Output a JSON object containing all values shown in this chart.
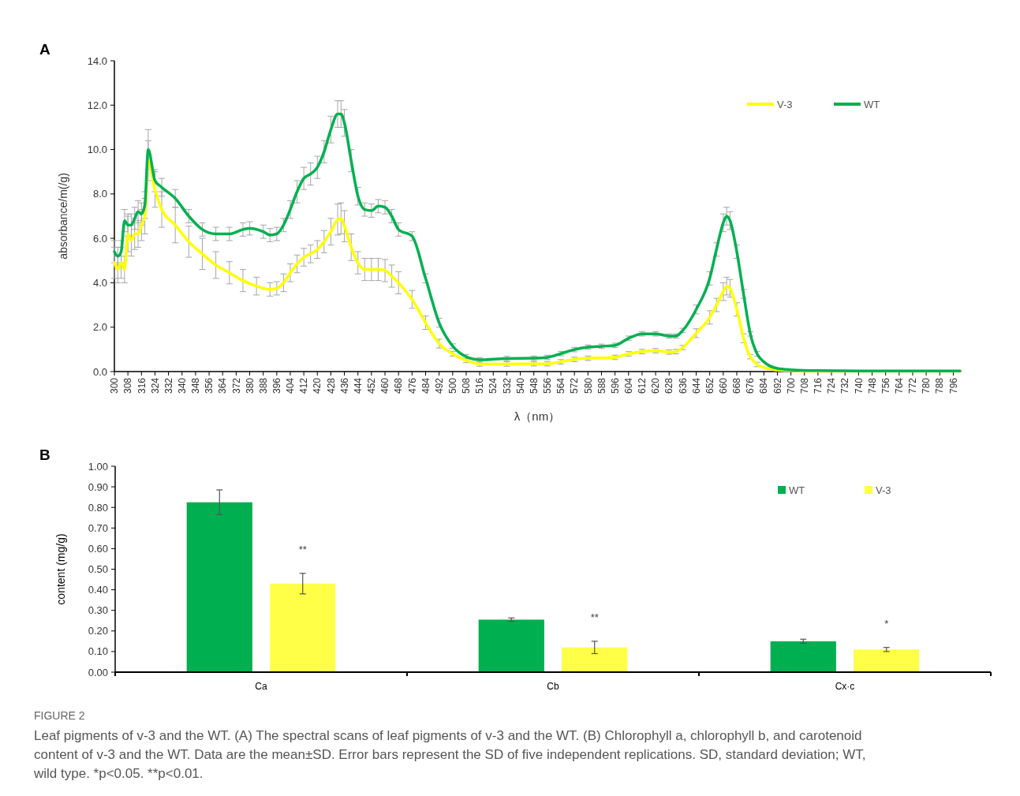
{
  "chart_data": [
    {
      "type": "line",
      "title": "A",
      "xlabel": "λ（nm）",
      "ylabel": "absorbance/m(/g)",
      "legend": "top right",
      "xlim": [
        300,
        800
      ],
      "xticks": [
        300,
        308,
        316,
        324,
        332,
        340,
        348,
        356,
        364,
        372,
        380,
        388,
        396,
        404,
        412,
        420,
        428,
        436,
        444,
        452,
        460,
        468,
        476,
        484,
        492,
        500,
        508,
        516,
        524,
        532,
        540,
        548,
        556,
        564,
        572,
        580,
        588,
        596,
        604,
        612,
        620,
        628,
        636,
        644,
        652,
        660,
        668,
        676,
        684,
        692,
        700,
        708,
        716,
        724,
        732,
        740,
        748,
        756,
        764,
        772,
        780,
        788,
        796
      ],
      "ylim": [
        0,
        14
      ],
      "yticks": [
        {
          "value": 0,
          "label": "0.0"
        },
        {
          "value": 2,
          "label": "2.0"
        },
        {
          "value": 4,
          "label": "4.0"
        },
        {
          "value": 6,
          "label": "6.0"
        },
        {
          "value": 8,
          "label": "8.0"
        },
        {
          "value": 10,
          "label": "10.0"
        },
        {
          "value": 12,
          "label": "12.0"
        },
        {
          "value": 14,
          "label": "14.0"
        }
      ],
      "series": [
        {
          "name": "V-3",
          "color": "#ffff00",
          "x": [
            300,
            302,
            304,
            306,
            308,
            310,
            312,
            314,
            316,
            318,
            320,
            324,
            328,
            336,
            344,
            352,
            360,
            368,
            376,
            384,
            392,
            396,
            400,
            404,
            408,
            412,
            416,
            420,
            424,
            428,
            432,
            434,
            436,
            440,
            444,
            448,
            452,
            456,
            460,
            464,
            468,
            476,
            484,
            492,
            500,
            508,
            516,
            532,
            548,
            556,
            564,
            572,
            580,
            596,
            604,
            612,
            620,
            628,
            632,
            636,
            644,
            652,
            656,
            660,
            662,
            664,
            668,
            672,
            676,
            680,
            684,
            692,
            700,
            716,
            800
          ],
          "values": [
            4.9,
            4.6,
            4.9,
            4.6,
            6.2,
            5.9,
            6.2,
            6.2,
            6.6,
            7.0,
            9.5,
            8.2,
            7.3,
            6.6,
            5.85,
            5.3,
            4.8,
            4.45,
            4.1,
            3.85,
            3.7,
            3.75,
            4.0,
            4.45,
            4.85,
            5.15,
            5.3,
            5.5,
            5.85,
            6.3,
            6.85,
            6.9,
            6.55,
            5.6,
            4.9,
            4.6,
            4.6,
            4.6,
            4.55,
            4.3,
            4.0,
            3.25,
            2.2,
            1.26,
            0.8,
            0.5,
            0.34,
            0.34,
            0.35,
            0.35,
            0.44,
            0.55,
            0.6,
            0.64,
            0.8,
            0.9,
            0.94,
            0.88,
            0.9,
            1.08,
            1.73,
            2.44,
            3.0,
            3.6,
            3.85,
            3.75,
            2.8,
            1.5,
            0.67,
            0.32,
            0.18,
            0.07,
            0.04,
            0.02,
            0.02
          ],
          "errors": [
            0.7,
            0.6,
            0.7,
            0.6,
            0.8,
            0.7,
            0.7,
            0.6,
            0.7,
            0.8,
            0.9,
            0.8,
            0.8,
            0.8,
            0.7,
            0.7,
            0.6,
            0.5,
            0.5,
            0.4,
            0.3,
            0.3,
            0.4,
            0.4,
            0.4,
            0.4,
            0.4,
            0.4,
            0.5,
            0.6,
            0.7,
            0.7,
            0.7,
            0.6,
            0.5,
            0.5,
            0.5,
            0.5,
            0.5,
            0.5,
            0.5,
            0.4,
            0.3,
            0.2,
            0.1,
            0.1,
            0.1,
            0.1,
            0.1,
            0.1,
            0.1,
            0.1,
            0.1,
            0.1,
            0.1,
            0.1,
            0.1,
            0.1,
            0.1,
            0.1,
            0.2,
            0.3,
            0.3,
            0.4,
            0.4,
            0.4,
            0.3,
            0.2,
            0.1,
            0.1,
            null,
            null,
            null,
            null,
            null
          ]
        },
        {
          "name": "WT",
          "color": "#00b050",
          "x": [
            300,
            302,
            304,
            306,
            308,
            310,
            312,
            314,
            316,
            318,
            320,
            324,
            328,
            336,
            344,
            352,
            360,
            368,
            376,
            380,
            388,
            392,
            396,
            400,
            404,
            408,
            412,
            416,
            420,
            424,
            428,
            432,
            434,
            436,
            440,
            444,
            448,
            452,
            456,
            460,
            464,
            468,
            476,
            484,
            492,
            500,
            508,
            516,
            532,
            548,
            556,
            564,
            572,
            580,
            588,
            596,
            604,
            612,
            620,
            628,
            632,
            636,
            644,
            652,
            656,
            660,
            662,
            664,
            668,
            672,
            676,
            680,
            684,
            692,
            700,
            716,
            740,
            800
          ],
          "values": [
            5.4,
            5.2,
            5.4,
            6.8,
            6.6,
            6.6,
            6.9,
            7.2,
            7.1,
            7.5,
            10.0,
            8.6,
            8.3,
            7.8,
            7.0,
            6.4,
            6.2,
            6.2,
            6.4,
            6.45,
            6.3,
            6.15,
            6.2,
            6.6,
            7.3,
            8.1,
            8.7,
            8.9,
            9.2,
            9.9,
            10.9,
            11.6,
            11.6,
            11.2,
            9.5,
            7.9,
            7.3,
            7.25,
            7.45,
            7.4,
            7.0,
            6.4,
            6.1,
            4.2,
            2.2,
            1.15,
            0.67,
            0.53,
            0.59,
            0.6,
            0.64,
            0.81,
            0.99,
            1.1,
            1.14,
            1.18,
            1.5,
            1.7,
            1.7,
            1.6,
            1.6,
            1.85,
            2.8,
            4.2,
            5.5,
            6.7,
            7.0,
            6.8,
            5.4,
            3.5,
            1.7,
            0.8,
            0.44,
            0.14,
            0.08,
            0.04,
            0.03,
            0.03
          ],
          "errors": [
            0.5,
            0.4,
            0.5,
            0.5,
            0.5,
            0.5,
            0.5,
            0.5,
            0.5,
            0.6,
            0.9,
            0.5,
            0.4,
            0.4,
            0.3,
            0.3,
            0.3,
            0.3,
            0.3,
            0.3,
            0.3,
            0.3,
            0.3,
            0.3,
            0.4,
            0.5,
            0.5,
            0.5,
            0.5,
            0.5,
            0.6,
            0.6,
            0.6,
            0.6,
            0.5,
            0.4,
            0.3,
            0.3,
            0.3,
            0.3,
            0.3,
            0.3,
            0.2,
            0.2,
            0.2,
            0.1,
            0.1,
            0.1,
            0.1,
            0.1,
            0.1,
            0.1,
            0.1,
            0.1,
            0.1,
            0.1,
            0.1,
            0.1,
            0.1,
            0.1,
            0.1,
            0.1,
            0.2,
            0.3,
            0.3,
            0.4,
            0.4,
            0.4,
            0.3,
            0.2,
            0.1,
            0.1,
            null,
            null,
            null,
            null,
            null,
            null
          ]
        }
      ]
    },
    {
      "type": "bar",
      "title": "B",
      "ylabel": "content (mg/g)",
      "legend": "top right",
      "categories": [
        "Ca",
        "Cb",
        "Cx·c"
      ],
      "ylim": [
        0,
        1
      ],
      "yticks": [
        {
          "value": 0,
          "label": "0.00"
        },
        {
          "value": 0.1,
          "label": "0.10"
        },
        {
          "value": 0.2,
          "label": "0.20"
        },
        {
          "value": 0.3,
          "label": "0.30"
        },
        {
          "value": 0.4,
          "label": "0.40"
        },
        {
          "value": 0.5,
          "label": "0.50"
        },
        {
          "value": 0.6,
          "label": "0.60"
        },
        {
          "value": 0.7,
          "label": "0.70"
        },
        {
          "value": 0.8,
          "label": "0.80"
        },
        {
          "value": 0.9,
          "label": "0.90"
        },
        {
          "value": 1,
          "label": "1.00"
        }
      ],
      "series": [
        {
          "name": "WT",
          "color": "#00b050",
          "values": [
            0.825,
            0.255,
            0.15
          ],
          "errors": [
            0.06,
            0.008,
            0.01
          ]
        },
        {
          "name": "V-3",
          "color": "#ffff47",
          "values": [
            0.43,
            0.12,
            0.11
          ],
          "errors": [
            0.05,
            0.03,
            0.01
          ]
        }
      ],
      "annotations": [
        "**",
        "**",
        "*",
        "FIGURE 2",
        "Leaf pigments of v-3 and the WT. (A) The spectral scans of leaf pigments of v-3 and the WT. (B) Chlorophyll a, chlorophyll b, and carotenoid content of v-3 and the WT. Data are the mean±SD. Error bars represent the SD of five independent replications. SD, standard deviation; WT, wild type. *p<0.05. **p<0.01."
      ]
    }
  ]
}
